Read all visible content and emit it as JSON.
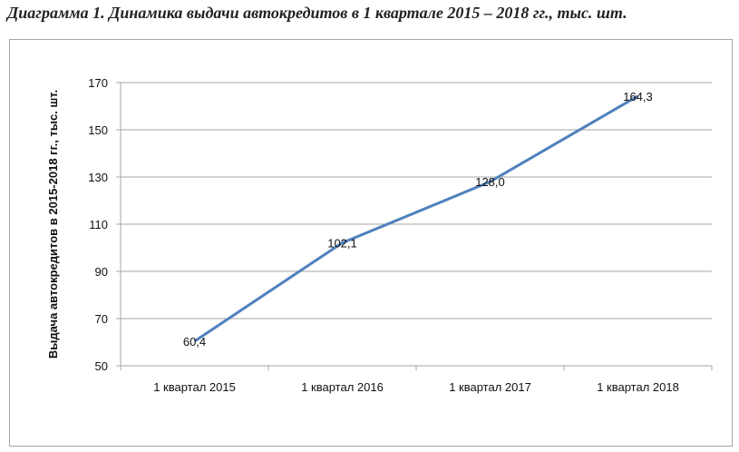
{
  "page": {
    "title": "Диаграмма 1. Динамика выдачи автокредитов  в 1 квартале 2015 – 2018 гг., тыс. шт."
  },
  "chart_data": {
    "type": "line",
    "title": "Диаграмма 1. Динамика выдачи автокредитов  в 1 квартале 2015 – 2018 гг., тыс. шт.",
    "xlabel": "",
    "ylabel": "Выдача автокредитов в 2015-2018 гг., тыс. шт.",
    "categories": [
      "1 квартал 2015",
      "1 квартал 2016",
      "1 квартал 2017",
      "1 квартал 2018"
    ],
    "series": [
      {
        "values": [
          60.4,
          102.1,
          128.0,
          164.3
        ],
        "labels": [
          "60,4",
          "102,1",
          "128,0",
          "164,3"
        ],
        "color": "#4f81bd"
      }
    ],
    "ylim": [
      50,
      170
    ],
    "yticks": [
      50,
      70,
      90,
      110,
      130,
      150,
      170
    ],
    "grid": true,
    "legend": "none"
  }
}
